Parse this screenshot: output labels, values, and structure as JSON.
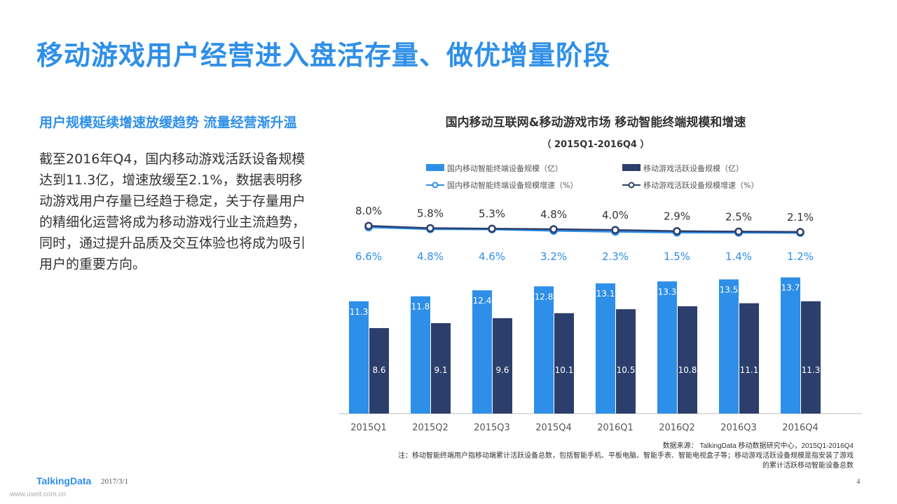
{
  "page": {
    "title": "移动游戏用户经营进入盘活存量、做优增量阶段",
    "subtitle": "用户规模延续增速放缓趋势 流量经营渐升温",
    "body": "截至2016年Q4，国内移动游戏活跃设备规模达到11.3亿，增速放缓至2.1%，数据表明移动游戏用户存量已经趋于稳定，关于存量用户的精细化运营将成为移动游戏行业主流趋势，同时，通过提升品质及交互体验也将成为吸引用户的重要方向。",
    "footer_logo": "TalkingData",
    "footer_date": "2017/3/1",
    "footer_page": "4",
    "watermark": "www.useit.com.cn"
  },
  "chart_data": {
    "type": "bar",
    "title": "国内移动互联网&移动游戏市场  移动智能终端规模和增速",
    "subtitle": "（ 2015Q1-2016Q4 ）",
    "categories": [
      "2015Q1",
      "2015Q2",
      "2015Q3",
      "2015Q4",
      "2016Q1",
      "2016Q2",
      "2016Q3",
      "2016Q4"
    ],
    "series": [
      {
        "name": "国内移动智能终端设备规模（亿）",
        "type": "bar",
        "color": "#2e8fe8",
        "values": [
          11.3,
          11.8,
          12.4,
          12.8,
          13.1,
          13.3,
          13.5,
          13.7
        ],
        "labels": [
          "11.3",
          "11.8",
          "12.4",
          "12.8",
          "13.1",
          "13.3",
          "13.5",
          "13.7"
        ]
      },
      {
        "name": "移动游戏活跃设备规模（亿）",
        "type": "bar",
        "color": "#2c3e6b",
        "values": [
          8.6,
          9.1,
          9.6,
          10.1,
          10.5,
          10.8,
          11.1,
          11.3
        ],
        "labels": [
          "8.6",
          "9.1",
          "9.6",
          "10.1",
          "10.5",
          "10.8",
          "11.1",
          "11.3"
        ]
      },
      {
        "name": "国内移动智能终端设备规模增速（%）",
        "type": "line",
        "color": "#2e8fe8",
        "values": [
          6.6,
          4.8,
          4.6,
          3.2,
          2.3,
          1.5,
          1.4,
          1.2
        ],
        "labels": [
          "6.6%",
          "4.8%",
          "4.6%",
          "3.2%",
          "2.3%",
          "1.5%",
          "1.4%",
          "1.2%"
        ]
      },
      {
        "name": "移动游戏活跃设备规模增速（%）",
        "type": "line",
        "color": "#2c3e6b",
        "values": [
          8.0,
          5.8,
          5.3,
          4.8,
          4.0,
          2.9,
          2.5,
          2.1
        ],
        "labels": [
          "8.0%",
          "5.8%",
          "5.3%",
          "4.8%",
          "4.0%",
          "2.9%",
          "2.5%",
          "2.1%"
        ]
      }
    ],
    "source": "数据来源：  TalkingData 移动数据研究中心，2015Q1-2016Q4",
    "note_line1": "注：移动智能终端用户指移动端累计活跃设备总数，包括智能手机、平板电脑、智能手表、智能电视盒子等；移动游戏活跃设备规模是指安装了游戏",
    "note_line2": "的累计活跃移动智能设备总数"
  }
}
